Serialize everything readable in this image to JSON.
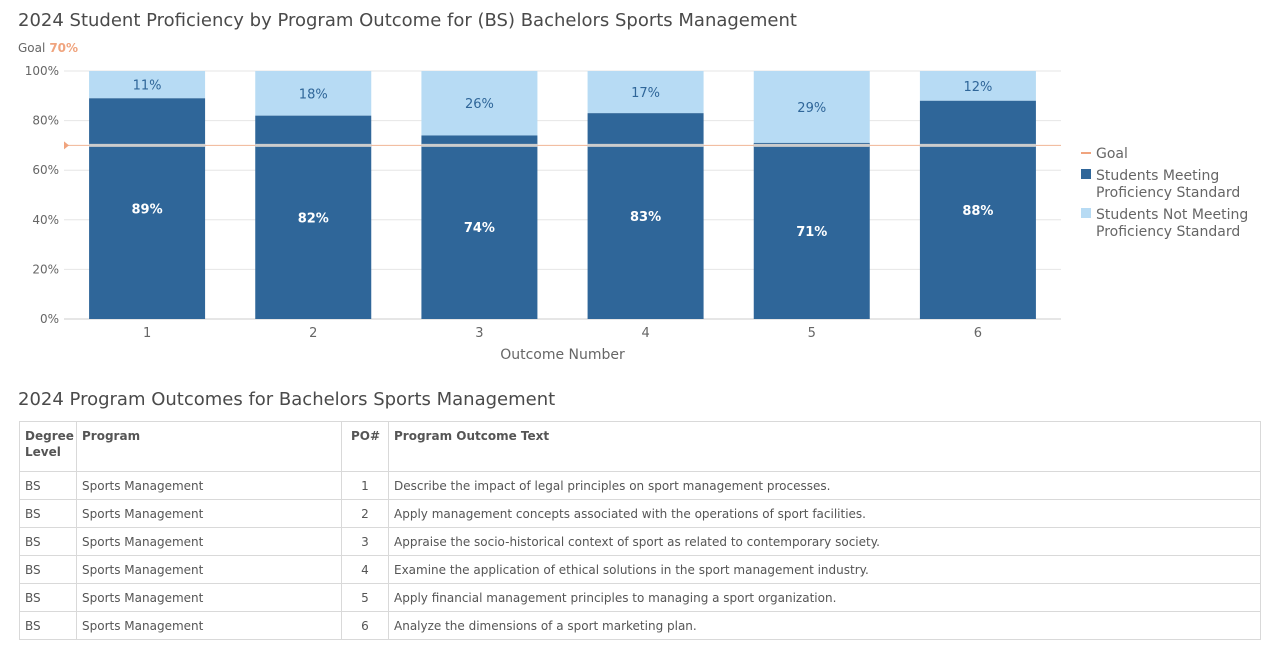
{
  "chart": {
    "title": "2024 Student Proficiency by Program Outcome for (BS) Bachelors Sports Management",
    "goal_label": "Goal",
    "goal_value_text": "70%"
  },
  "chart_data": {
    "type": "bar",
    "stacked": true,
    "title": "2024 Student Proficiency by Program Outcome for (BS) Bachelors Sports Management",
    "xlabel": "Outcome Number",
    "ylabel": "",
    "categories": [
      "1",
      "2",
      "3",
      "4",
      "5",
      "6"
    ],
    "ylim": [
      0,
      100
    ],
    "yticks": [
      "0%",
      "20%",
      "40%",
      "60%",
      "80%",
      "100%"
    ],
    "grid": true,
    "legend_position": "right",
    "goal": 70,
    "series": [
      {
        "name": "Students Meeting Proficiency Standard",
        "values": [
          89,
          82,
          74,
          83,
          71,
          88
        ],
        "labels": [
          "89%",
          "82%",
          "74%",
          "83%",
          "71%",
          "88%"
        ],
        "color": "#2f6699"
      },
      {
        "name": "Students Not Meeting Proficiency Standard",
        "values": [
          11,
          18,
          26,
          17,
          29,
          12
        ],
        "labels": [
          "11%",
          "18%",
          "26%",
          "17%",
          "29%",
          "12%"
        ],
        "color": "#b7dbf4"
      }
    ],
    "legend": [
      {
        "name": "Goal",
        "lines": [
          "Goal"
        ],
        "color": "#f0a47e"
      },
      {
        "name": "Students Meeting Proficiency Standard",
        "lines": [
          "Students Meeting",
          "Proficiency Standard"
        ],
        "color": "#2f6699"
      },
      {
        "name": "Students Not Meeting Proficiency Standard",
        "lines": [
          "Students Not Meeting",
          "Proficiency Standard"
        ],
        "color": "#b7dbf4"
      }
    ]
  },
  "table": {
    "title": "2024 Program Outcomes for Bachelors Sports Management",
    "headers": {
      "degree": "Degree Level",
      "program": "Program",
      "po": "PO#",
      "text": "Program Outcome Text"
    },
    "rows": [
      {
        "degree": "BS",
        "program": "Sports Management",
        "po": "1",
        "text": "Describe the impact of legal principles on sport management processes."
      },
      {
        "degree": "BS",
        "program": "Sports Management",
        "po": "2",
        "text": "Apply management concepts associated with the operations of sport facilities."
      },
      {
        "degree": "BS",
        "program": "Sports Management",
        "po": "3",
        "text": "Appraise the socio-historical context of sport as related to contemporary society."
      },
      {
        "degree": "BS",
        "program": "Sports Management",
        "po": "4",
        "text": "Examine the application of ethical solutions in the sport management industry."
      },
      {
        "degree": "BS",
        "program": "Sports Management",
        "po": "5",
        "text": "Apply financial management principles to managing a sport organization."
      },
      {
        "degree": "BS",
        "program": "Sports Management",
        "po": "6",
        "text": "Analyze the dimensions of a sport marketing plan."
      }
    ]
  }
}
